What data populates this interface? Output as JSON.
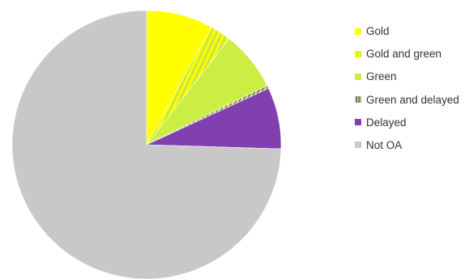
{
  "chart_data": {
    "type": "pie",
    "title": "",
    "legend_position": "right",
    "slices": [
      {
        "label": "Gold",
        "value": 8.0,
        "color": "#FFFF00",
        "pattern": "solid"
      },
      {
        "label": "Gold and green",
        "value": 2.5,
        "color": "#FFFF00",
        "pattern_color": "#C8E63C",
        "pattern": "stripes"
      },
      {
        "label": "Green",
        "value": 7.2,
        "color": "#CCEE44",
        "pattern": "solid"
      },
      {
        "label": "Green and delayed",
        "value": 0.4,
        "color": "#CCEE44",
        "pattern_color": "#8040B0",
        "pattern": "stripes"
      },
      {
        "label": "Delayed",
        "value": 7.4,
        "color": "#8040B0",
        "pattern": "solid"
      },
      {
        "label": "Not OA",
        "value": 74.5,
        "color": "#C8C8C8",
        "pattern": "solid"
      }
    ]
  }
}
